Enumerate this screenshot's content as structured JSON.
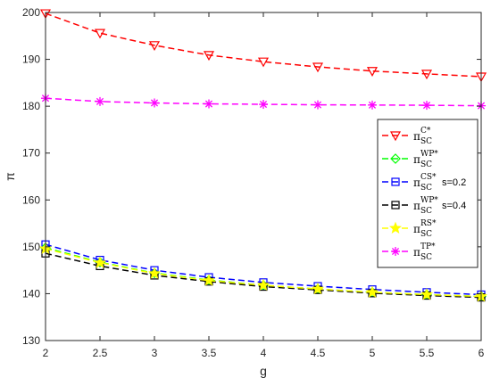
{
  "chart_data": {
    "type": "line",
    "title": "",
    "xlabel": "g",
    "ylabel": "π",
    "xlim": [
      2,
      6
    ],
    "ylim": [
      130,
      200
    ],
    "x": [
      2,
      2.5,
      3,
      3.5,
      4,
      4.5,
      5,
      5.5,
      6
    ],
    "xticks": [
      "2",
      "2.5",
      "3",
      "3.5",
      "4",
      "4.5",
      "5",
      "5.5",
      "6"
    ],
    "yticks": [
      "130",
      "140",
      "150",
      "160",
      "170",
      "180",
      "190",
      "200"
    ],
    "grid": false,
    "legend_position": "right",
    "series": [
      {
        "name": "π_SC^{C*}",
        "base": "π",
        "sub": "SC",
        "sup": "C*",
        "extra": "",
        "color": "#ff0000",
        "marker": "triangle-down",
        "values": [
          199.8,
          195.6,
          193.0,
          190.9,
          189.5,
          188.4,
          187.5,
          186.9,
          186.3
        ]
      },
      {
        "name": "π_SC^{WP*}",
        "base": "π",
        "sub": "SC",
        "sup": "WP*",
        "extra": "",
        "color": "#00ff00",
        "marker": "diamond",
        "values": [
          149.8,
          146.7,
          144.4,
          142.9,
          141.8,
          141.0,
          140.3,
          139.8,
          139.4
        ]
      },
      {
        "name": "π_SC^{CS*} s=0.2",
        "base": "π",
        "sub": "SC",
        "sup": "CS*",
        "extra": "s=0.2",
        "color": "#0000ff",
        "marker": "square",
        "values": [
          150.5,
          147.2,
          145.0,
          143.5,
          142.4,
          141.6,
          140.9,
          140.3,
          139.8
        ]
      },
      {
        "name": "π_SC^{WP*} s=0.4",
        "base": "π",
        "sub": "SC",
        "sup": "WP*",
        "extra": "s=0.4",
        "color": "#000000",
        "marker": "square",
        "values": [
          148.6,
          145.9,
          143.9,
          142.6,
          141.5,
          140.8,
          140.1,
          139.6,
          139.2
        ]
      },
      {
        "name": "π_SC^{RS*}",
        "base": "π",
        "sub": "SC",
        "sup": "RS*",
        "extra": "",
        "color": "#ffff00",
        "marker": "star",
        "values": [
          149.6,
          146.6,
          144.3,
          142.8,
          141.8,
          141.0,
          140.3,
          139.8,
          139.4
        ]
      },
      {
        "name": "π_SC^{TP*}",
        "base": "π",
        "sub": "SC",
        "sup": "TP*",
        "extra": "",
        "color": "#ff00ff",
        "marker": "asterisk",
        "values": [
          181.7,
          181.0,
          180.7,
          180.5,
          180.4,
          180.3,
          180.25,
          180.2,
          180.1
        ]
      }
    ]
  }
}
